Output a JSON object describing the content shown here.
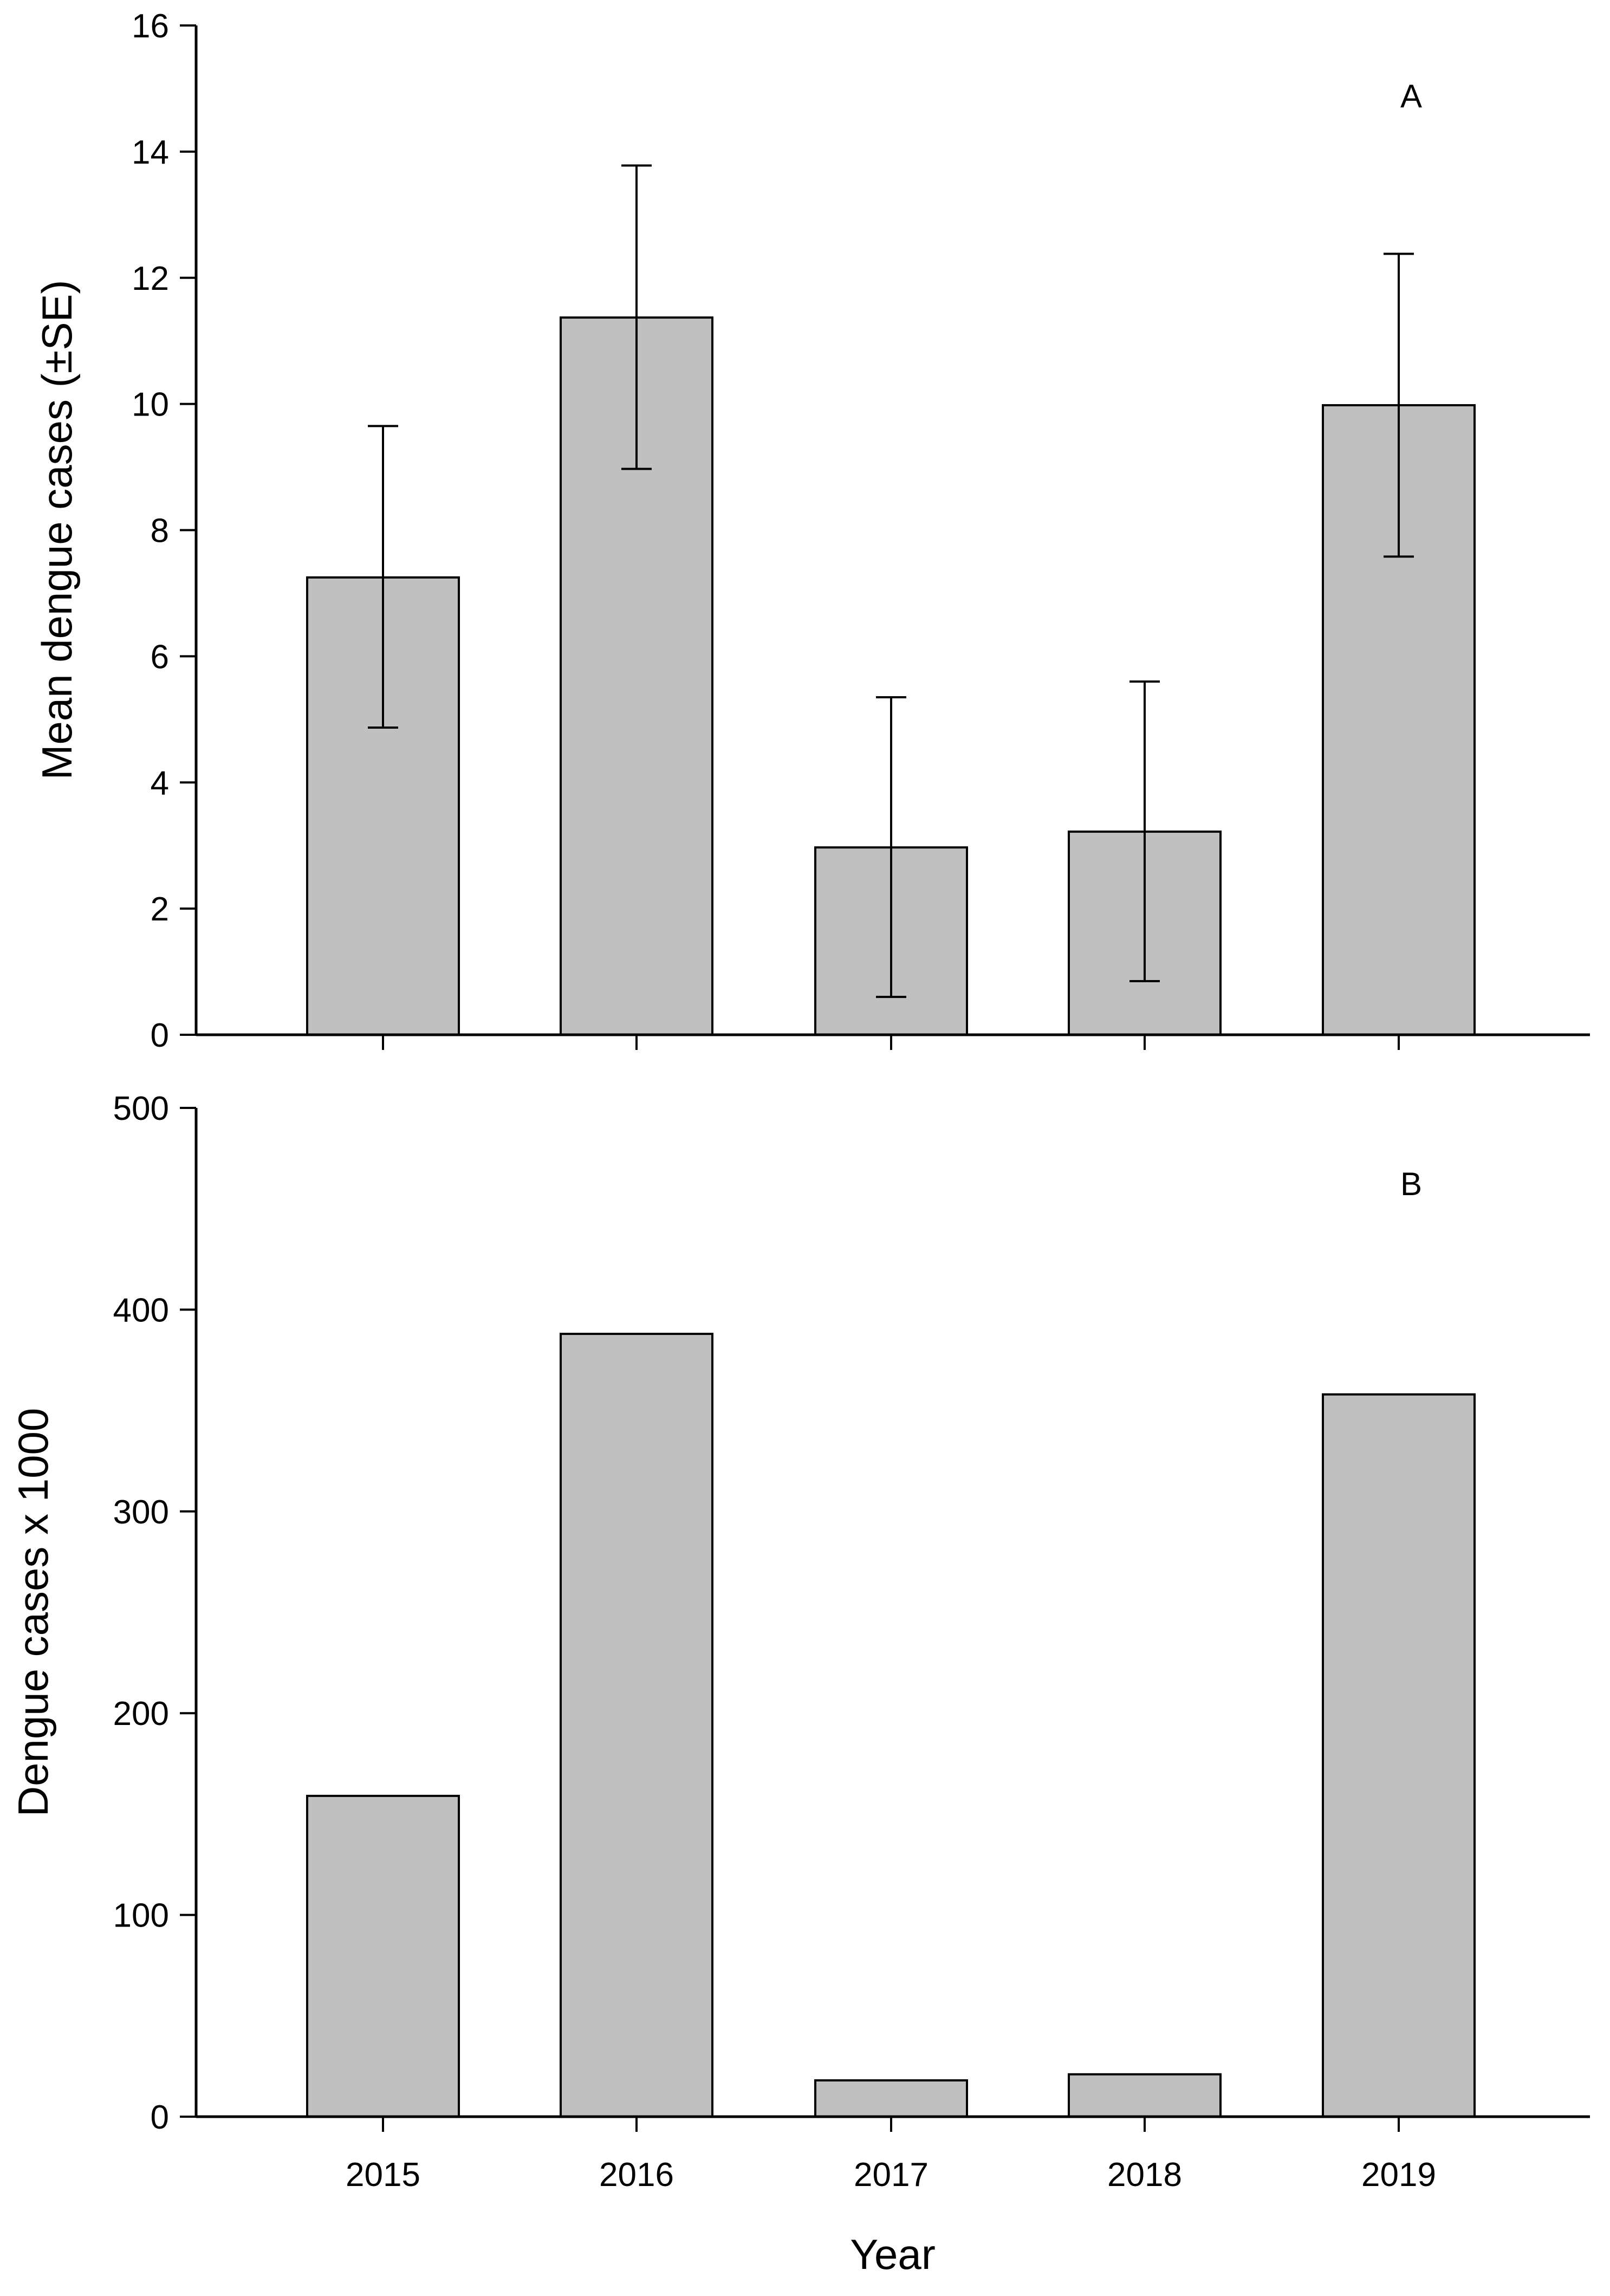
{
  "chart_data": [
    {
      "type": "bar",
      "panel_label": "A",
      "categories": [
        "2015",
        "2016",
        "2017",
        "2018",
        "2019"
      ],
      "values": [
        7.25,
        11.37,
        2.97,
        3.22,
        9.98
      ],
      "error_upper": [
        9.65,
        13.78,
        5.35,
        5.6,
        12.38
      ],
      "error_lower": [
        4.87,
        8.97,
        0.6,
        0.85,
        7.58
      ],
      "title": "",
      "xlabel": "",
      "ylabel": "Mean dengue cases (±SE)",
      "ylim": [
        0,
        16
      ],
      "yticks": [
        "0",
        "2",
        "4",
        "6",
        "8",
        "10",
        "12",
        "14",
        "16"
      ],
      "bar_color": "#c0c0c0",
      "grid": false
    },
    {
      "type": "bar",
      "panel_label": "B",
      "categories": [
        "2015",
        "2016",
        "2017",
        "2018",
        "2019"
      ],
      "values": [
        159,
        388,
        18,
        21,
        358
      ],
      "title": "",
      "xlabel": "Year",
      "ylabel": "Dengue cases x 1000",
      "ylim": [
        0,
        500
      ],
      "yticks": [
        "0",
        "100",
        "200",
        "300",
        "400",
        "500"
      ],
      "bar_color": "#c0c0c0",
      "grid": false
    }
  ]
}
